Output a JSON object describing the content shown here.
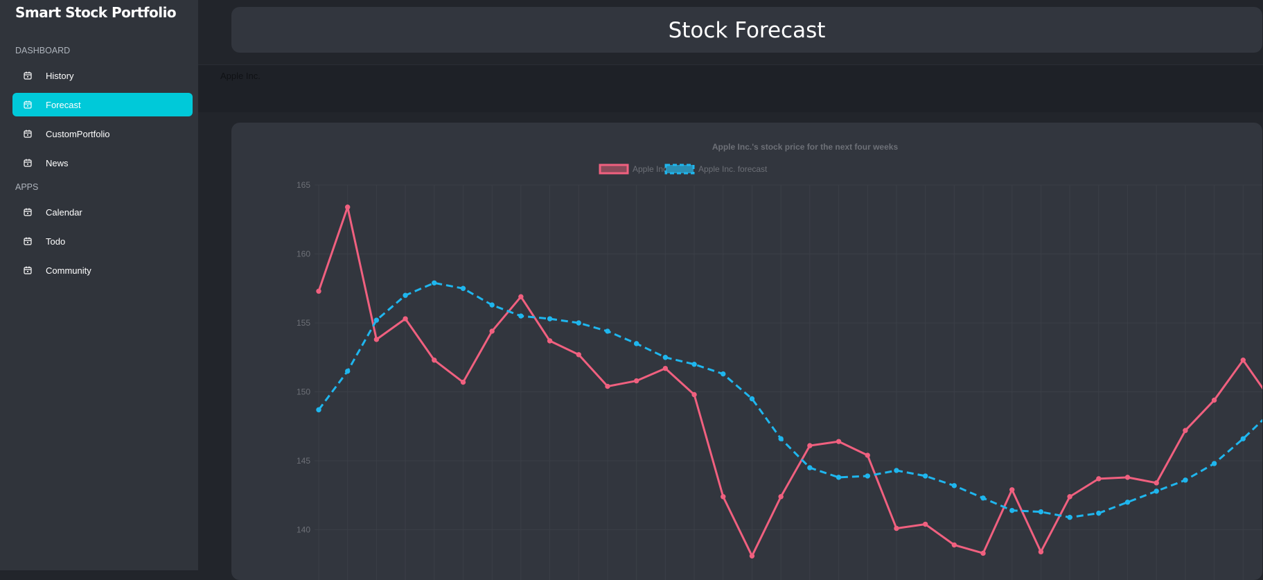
{
  "app": {
    "brand": "Smart Stock Portfolio",
    "page_title": "Stock Forecast",
    "company": "Apple Inc."
  },
  "sidebar": {
    "sections": [
      {
        "title": "DASHBOARD",
        "items": [
          {
            "label": "History",
            "icon": "calendar-icon",
            "active": false
          },
          {
            "label": "Forecast",
            "icon": "calendar-icon",
            "active": true
          },
          {
            "label": "CustomPortfolio",
            "icon": "calendar-icon",
            "active": false
          },
          {
            "label": "News",
            "icon": "calendar-icon",
            "active": false
          }
        ]
      },
      {
        "title": "APPS",
        "items": [
          {
            "label": "Calendar",
            "icon": "calendar-icon",
            "active": false
          },
          {
            "label": "Todo",
            "icon": "calendar-icon",
            "active": false
          },
          {
            "label": "Community",
            "icon": "calendar-icon",
            "active": false
          }
        ]
      }
    ]
  },
  "colors": {
    "accent": "#00c9d9",
    "actual_series": "#f0607f",
    "forecast_series": "#1fb6ee"
  },
  "chart_data": {
    "type": "line",
    "title": "Apple Inc.'s stock price for the next four weeks",
    "xlabel": "",
    "ylabel": "",
    "ylim": [
      137,
      165
    ],
    "yticks": [
      140,
      145,
      150,
      155,
      160,
      165
    ],
    "grid": true,
    "legend_position": "top",
    "series": [
      {
        "name": "Apple Inc.",
        "style": "solid",
        "values": [
          157.3,
          163.4,
          153.8,
          155.3,
          152.3,
          150.7,
          154.4,
          156.9,
          153.7,
          152.7,
          150.4,
          150.8,
          151.7,
          149.8,
          142.4,
          138.1,
          142.4,
          146.1,
          146.4,
          145.4,
          140.1,
          140.4,
          138.9,
          138.3,
          142.9,
          138.4,
          142.4,
          143.7,
          143.8,
          143.4,
          147.2,
          149.4,
          152.3,
          149.3
        ]
      },
      {
        "name": "Apple Inc. forecast",
        "style": "dashed",
        "values": [
          148.7,
          151.5,
          155.2,
          157.0,
          157.9,
          157.5,
          156.3,
          155.5,
          155.3,
          155.0,
          154.4,
          153.5,
          152.5,
          152.0,
          151.3,
          149.5,
          146.6,
          144.5,
          143.8,
          143.9,
          144.3,
          143.9,
          143.2,
          142.3,
          141.4,
          141.3,
          140.9,
          141.2,
          142.0,
          142.8,
          143.6,
          144.8,
          146.6,
          148.6
        ]
      }
    ]
  }
}
